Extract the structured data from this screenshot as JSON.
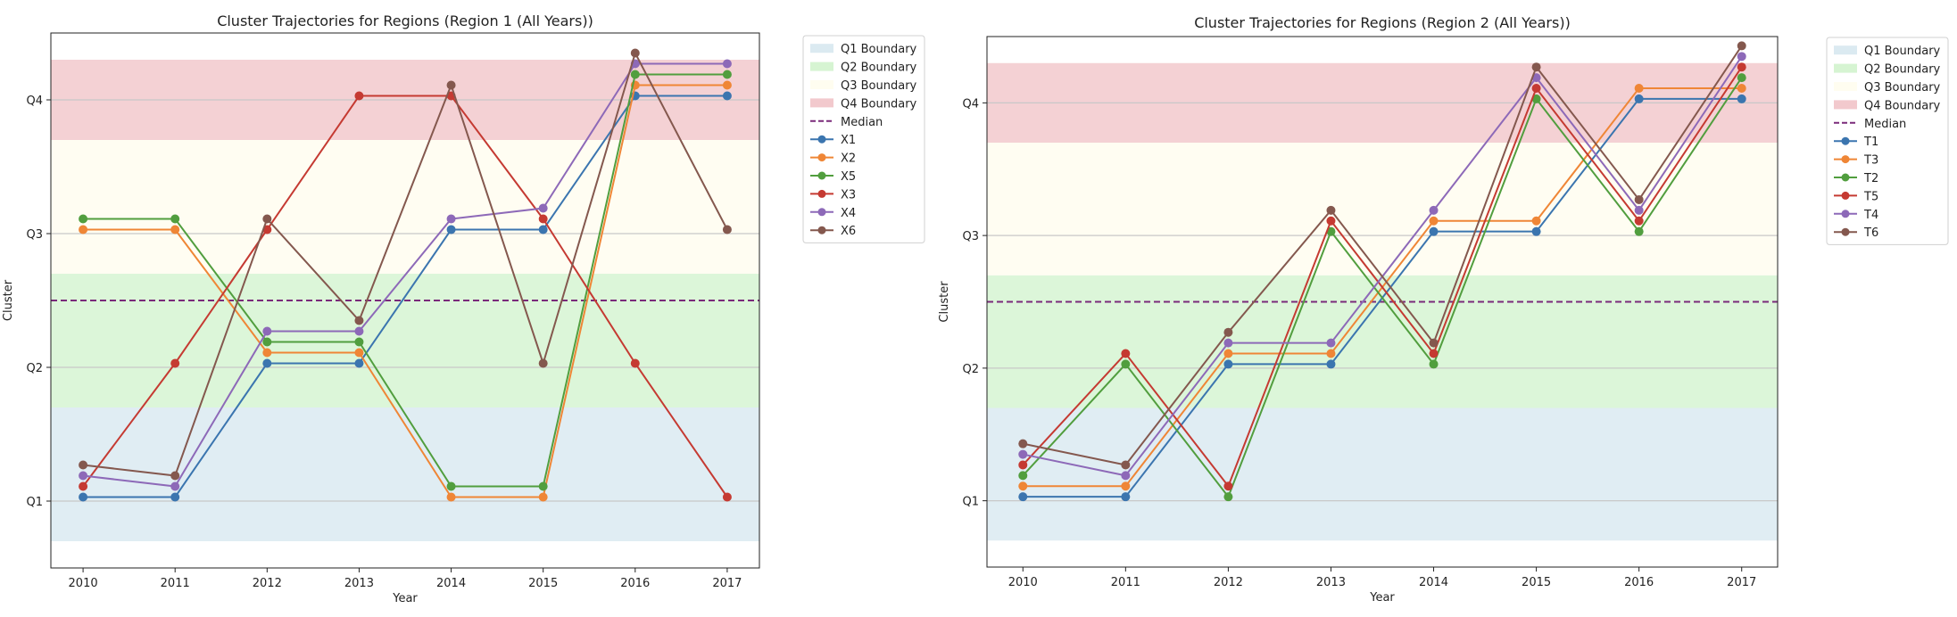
{
  "quartile_labels": [
    "Q1",
    "Q2",
    "Q3",
    "Q4"
  ],
  "colors": {
    "Q1 Boundary": "#dbeaf1",
    "Q2 Boundary": "#d6f4d2",
    "Q3 Boundary": "#fffdf0",
    "Q4 Boundary": "#f2c9cd",
    "Median": "#7a2a7a",
    "axis": "#222222",
    "grid": "#c8c8c8"
  },
  "chart_data": [
    {
      "type": "line",
      "title": "Cluster Trajectories for Regions (Region 1 (All Years))",
      "xlabel": "Year",
      "ylabel": "Cluster",
      "x": [
        2010,
        2011,
        2012,
        2013,
        2014,
        2015,
        2016,
        2017
      ],
      "ylim": [
        0.5,
        4.5
      ],
      "yticks": [
        1,
        2,
        3,
        4
      ],
      "yticklabels": [
        "Q1",
        "Q2",
        "Q3",
        "Q4"
      ],
      "bands": [
        {
          "name": "Q1 Boundary",
          "from": 0.7,
          "to": 1.7
        },
        {
          "name": "Q2 Boundary",
          "from": 1.7,
          "to": 2.7
        },
        {
          "name": "Q3 Boundary",
          "from": 2.7,
          "to": 3.7
        },
        {
          "name": "Q4 Boundary",
          "from": 3.7,
          "to": 4.3
        }
      ],
      "median": {
        "name": "Median",
        "value": 2.5
      },
      "legend_position": "outside-right",
      "series": [
        {
          "name": "X1",
          "color": "#3b75af",
          "values": [
            1.03,
            1.03,
            2.03,
            2.03,
            3.03,
            3.03,
            4.03,
            4.03
          ]
        },
        {
          "name": "X2",
          "color": "#ef8636",
          "values": [
            3.03,
            3.03,
            2.11,
            2.11,
            1.03,
            1.03,
            4.11,
            4.11
          ]
        },
        {
          "name": "X5",
          "color": "#519e3e",
          "values": [
            3.11,
            3.11,
            2.19,
            2.19,
            1.11,
            1.11,
            4.19,
            4.19
          ]
        },
        {
          "name": "X3",
          "color": "#c53a32",
          "values": [
            1.11,
            2.03,
            3.03,
            4.03,
            4.03,
            3.11,
            2.03,
            1.03
          ]
        },
        {
          "name": "X4",
          "color": "#8d69b8",
          "values": [
            1.19,
            1.11,
            2.27,
            2.27,
            3.11,
            3.19,
            4.27,
            4.27
          ]
        },
        {
          "name": "X6",
          "color": "#84584e",
          "values": [
            1.27,
            1.19,
            3.11,
            2.35,
            4.11,
            2.03,
            4.35,
            3.03
          ]
        }
      ]
    },
    {
      "type": "line",
      "title": "Cluster Trajectories for Regions (Region 2 (All Years))",
      "xlabel": "Year",
      "ylabel": "Cluster",
      "x": [
        2010,
        2011,
        2012,
        2013,
        2014,
        2015,
        2016,
        2017
      ],
      "ylim": [
        0.5,
        4.5
      ],
      "yticks": [
        1,
        2,
        3,
        4
      ],
      "yticklabels": [
        "Q1",
        "Q2",
        "Q3",
        "Q4"
      ],
      "bands": [
        {
          "name": "Q1 Boundary",
          "from": 0.7,
          "to": 1.7
        },
        {
          "name": "Q2 Boundary",
          "from": 1.7,
          "to": 2.7
        },
        {
          "name": "Q3 Boundary",
          "from": 2.7,
          "to": 3.7
        },
        {
          "name": "Q4 Boundary",
          "from": 3.7,
          "to": 4.3
        }
      ],
      "median": {
        "name": "Median",
        "value": 2.5
      },
      "legend_position": "outside-right",
      "series": [
        {
          "name": "T1",
          "color": "#3b75af",
          "values": [
            1.03,
            1.03,
            2.03,
            2.03,
            3.03,
            3.03,
            4.03,
            4.03
          ]
        },
        {
          "name": "T3",
          "color": "#ef8636",
          "values": [
            1.11,
            1.11,
            2.11,
            2.11,
            3.11,
            3.11,
            4.11,
            4.11
          ]
        },
        {
          "name": "T2",
          "color": "#519e3e",
          "values": [
            1.19,
            2.03,
            1.03,
            3.03,
            2.03,
            4.03,
            3.03,
            4.19
          ]
        },
        {
          "name": "T5",
          "color": "#c53a32",
          "values": [
            1.27,
            2.11,
            1.11,
            3.11,
            2.11,
            4.11,
            3.11,
            4.27
          ]
        },
        {
          "name": "T4",
          "color": "#8d69b8",
          "values": [
            1.35,
            1.19,
            2.19,
            2.19,
            3.19,
            4.19,
            3.19,
            4.35
          ]
        },
        {
          "name": "T6",
          "color": "#84584e",
          "values": [
            1.43,
            1.27,
            2.27,
            3.19,
            2.19,
            4.27,
            3.27,
            4.43
          ]
        }
      ]
    }
  ]
}
